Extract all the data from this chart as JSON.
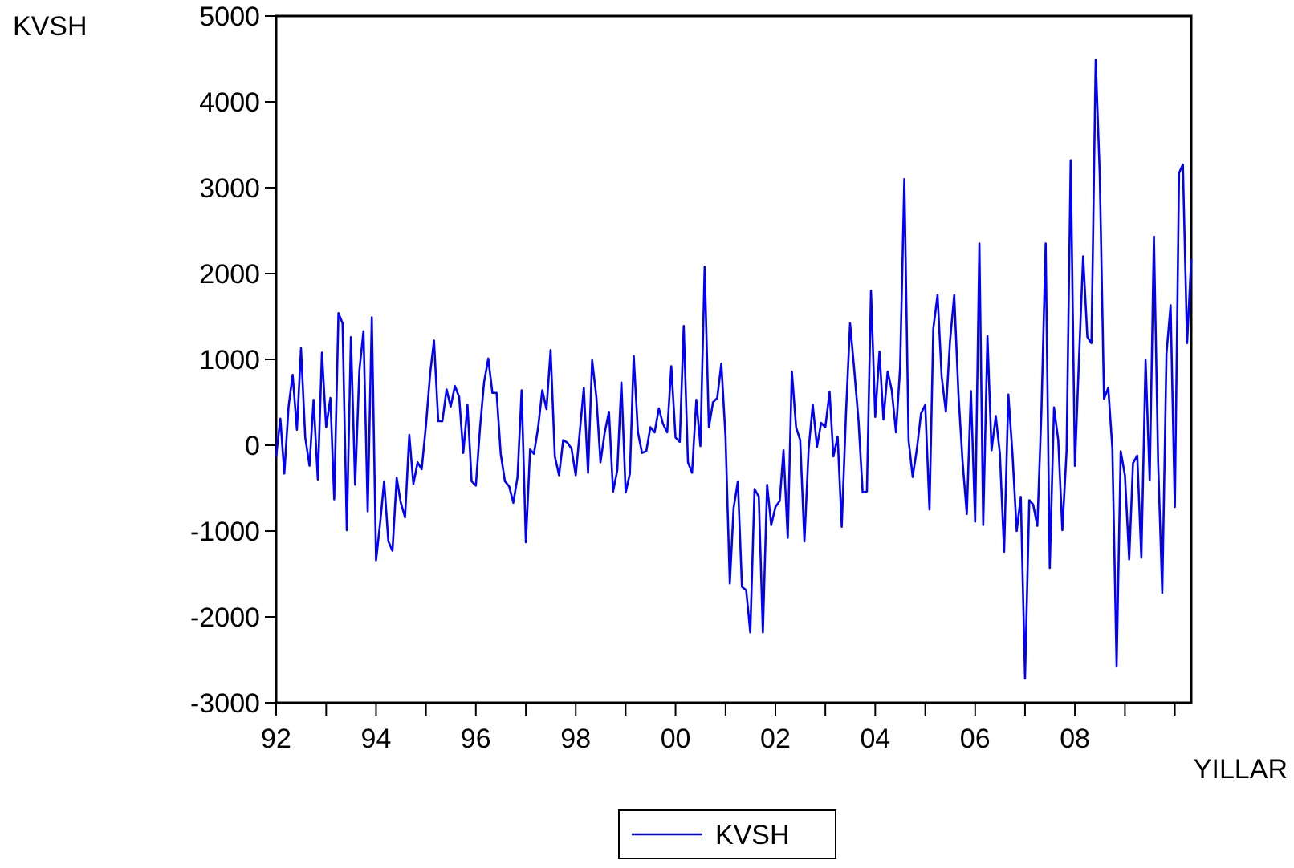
{
  "chart_data": {
    "type": "line",
    "ylabel": "KVSH",
    "xlabel": "YILLAR",
    "xlim": [
      "1992-01",
      "2010-05"
    ],
    "xticks": [
      {
        "value": "1992-01",
        "label": "92"
      },
      {
        "value": "1993-01",
        "label": null
      },
      {
        "value": "1994-01",
        "label": "94"
      },
      {
        "value": "1995-01",
        "label": null
      },
      {
        "value": "1996-01",
        "label": "96"
      },
      {
        "value": "1997-01",
        "label": null
      },
      {
        "value": "1998-01",
        "label": "98"
      },
      {
        "value": "1999-01",
        "label": null
      },
      {
        "value": "2000-01",
        "label": "00"
      },
      {
        "value": "2001-01",
        "label": null
      },
      {
        "value": "2002-01",
        "label": "02"
      },
      {
        "value": "2003-01",
        "label": null
      },
      {
        "value": "2004-01",
        "label": "04"
      },
      {
        "value": "2005-01",
        "label": null
      },
      {
        "value": "2006-01",
        "label": "06"
      },
      {
        "value": "2007-01",
        "label": null
      },
      {
        "value": "2008-01",
        "label": "08"
      },
      {
        "value": "2009-01",
        "label": null
      },
      {
        "value": "2010-01",
        "label": null
      }
    ],
    "ylim": [
      -3000,
      5000
    ],
    "yticks": [
      -3000,
      -2000,
      -1000,
      0,
      1000,
      2000,
      3000,
      4000,
      5000
    ],
    "grid": false,
    "legend": "bottom",
    "marker": "none",
    "line_style": "solid",
    "x": [
      "1992-01",
      "1992-02",
      "1992-03",
      "1992-04",
      "1992-05",
      "1992-06",
      "1992-07",
      "1992-08",
      "1992-09",
      "1992-10",
      "1992-11",
      "1992-12",
      "1993-01",
      "1993-02",
      "1993-03",
      "1993-04",
      "1993-05",
      "1993-06",
      "1993-07",
      "1993-08",
      "1993-09",
      "1993-10",
      "1993-11",
      "1993-12",
      "1994-01",
      "1994-02",
      "1994-03",
      "1994-04",
      "1994-05",
      "1994-06",
      "1994-07",
      "1994-08",
      "1994-09",
      "1994-10",
      "1994-11",
      "1994-12",
      "1995-01",
      "1995-02",
      "1995-03",
      "1995-04",
      "1995-05",
      "1995-06",
      "1995-07",
      "1995-08",
      "1995-09",
      "1995-10",
      "1995-11",
      "1995-12",
      "1996-01",
      "1996-02",
      "1996-03",
      "1996-04",
      "1996-05",
      "1996-06",
      "1996-07",
      "1996-08",
      "1996-09",
      "1996-10",
      "1996-11",
      "1996-12",
      "1997-01",
      "1997-02",
      "1997-03",
      "1997-04",
      "1997-05",
      "1997-06",
      "1997-07",
      "1997-08",
      "1997-09",
      "1997-10",
      "1997-11",
      "1997-12",
      "1998-01",
      "1998-02",
      "1998-03",
      "1998-04",
      "1998-05",
      "1998-06",
      "1998-07",
      "1998-08",
      "1998-09",
      "1998-10",
      "1998-11",
      "1998-12",
      "1999-01",
      "1999-02",
      "1999-03",
      "1999-04",
      "1999-05",
      "1999-06",
      "1999-07",
      "1999-08",
      "1999-09",
      "1999-10",
      "1999-11",
      "1999-12",
      "2000-01",
      "2000-02",
      "2000-03",
      "2000-04",
      "2000-05",
      "2000-06",
      "2000-07",
      "2000-08",
      "2000-09",
      "2000-10",
      "2000-11",
      "2000-12",
      "2001-01",
      "2001-02",
      "2001-03",
      "2001-04",
      "2001-05",
      "2001-06",
      "2001-07",
      "2001-08",
      "2001-09",
      "2001-10",
      "2001-11",
      "2001-12",
      "2002-01",
      "2002-02",
      "2002-03",
      "2002-04",
      "2002-05",
      "2002-06",
      "2002-07",
      "2002-08",
      "2002-09",
      "2002-10",
      "2002-11",
      "2002-12",
      "2003-01",
      "2003-02",
      "2003-03",
      "2003-04",
      "2003-05",
      "2003-06",
      "2003-07",
      "2003-08",
      "2003-09",
      "2003-10",
      "2003-11",
      "2003-12",
      "2004-01",
      "2004-02",
      "2004-03",
      "2004-04",
      "2004-05",
      "2004-06",
      "2004-07",
      "2004-08",
      "2004-09",
      "2004-10",
      "2004-11",
      "2004-12",
      "2005-01",
      "2005-02",
      "2005-03",
      "2005-04",
      "2005-05",
      "2005-06",
      "2005-07",
      "2005-08",
      "2005-09",
      "2005-10",
      "2005-11",
      "2005-12",
      "2006-01",
      "2006-02",
      "2006-03",
      "2006-04",
      "2006-05",
      "2006-06",
      "2006-07",
      "2006-08",
      "2006-09",
      "2006-10",
      "2006-11",
      "2006-12",
      "2007-01",
      "2007-02",
      "2007-03",
      "2007-04",
      "2007-05",
      "2007-06",
      "2007-07",
      "2007-08",
      "2007-09",
      "2007-10",
      "2007-11",
      "2007-12",
      "2008-01",
      "2008-02",
      "2008-03",
      "2008-04",
      "2008-05",
      "2008-06",
      "2008-07",
      "2008-08",
      "2008-09",
      "2008-10",
      "2008-11",
      "2008-12",
      "2009-01",
      "2009-02",
      "2009-03",
      "2009-04",
      "2009-05",
      "2009-06",
      "2009-07",
      "2009-08",
      "2009-09",
      "2009-10",
      "2009-11",
      "2009-12",
      "2010-01",
      "2010-02",
      "2010-03",
      "2010-04",
      "2010-05"
    ],
    "series": [
      {
        "name": "KVSH",
        "color": "#0000ff",
        "values": [
          -130,
          310,
          -330,
          450,
          820,
          180,
          1130,
          90,
          -240,
          530,
          -400,
          1080,
          210,
          550,
          -630,
          1540,
          1420,
          -990,
          1260,
          -460,
          870,
          1330,
          -770,
          1490,
          -1340,
          -890,
          -420,
          -1120,
          -1230,
          -380,
          -670,
          -840,
          120,
          -450,
          -200,
          -280,
          230,
          840,
          1220,
          280,
          280,
          650,
          450,
          690,
          560,
          -90,
          470,
          -420,
          -470,
          210,
          730,
          1010,
          610,
          610,
          -100,
          -420,
          -480,
          -670,
          -370,
          640,
          -1130,
          -50,
          -100,
          210,
          640,
          420,
          1110,
          -130,
          -350,
          60,
          30,
          -40,
          -350,
          180,
          670,
          -320,
          990,
          560,
          -200,
          150,
          390,
          -540,
          -290,
          730,
          -550,
          -330,
          1040,
          150,
          -90,
          -70,
          210,
          150,
          430,
          250,
          150,
          920,
          90,
          40,
          1390,
          -200,
          -320,
          530,
          -10,
          2080,
          210,
          500,
          550,
          950,
          90,
          -1610,
          -730,
          -420,
          -1650,
          -1690,
          -2180,
          -510,
          -600,
          -2180,
          -460,
          -930,
          -720,
          -650,
          -60,
          -1080,
          860,
          210,
          60,
          -1120,
          -40,
          470,
          -20,
          260,
          210,
          620,
          -130,
          100,
          -950,
          370,
          1420,
          870,
          280,
          -550,
          -540,
          1800,
          330,
          1090,
          300,
          860,
          640,
          150,
          900,
          3100,
          60,
          -370,
          -40,
          370,
          470,
          -750,
          1360,
          1750,
          800,
          390,
          1210,
          1750,
          590,
          -190,
          -800,
          630,
          -890,
          2350,
          -930,
          1270,
          -60,
          340,
          -100,
          -1240,
          590,
          -100,
          -1000,
          -600,
          -2720,
          -640,
          -690,
          -940,
          400,
          2350,
          -1430,
          440,
          60,
          -990,
          -70,
          3320,
          -240,
          1050,
          2200,
          1260,
          1190,
          4490,
          3140,
          540,
          670,
          -40,
          -2580,
          -70,
          -350,
          -1330,
          -210,
          -120,
          -1310,
          990,
          -410,
          2430,
          -210,
          -1720,
          1070,
          1630,
          -720,
          3170,
          3270,
          1190,
          2170
        ]
      }
    ]
  }
}
